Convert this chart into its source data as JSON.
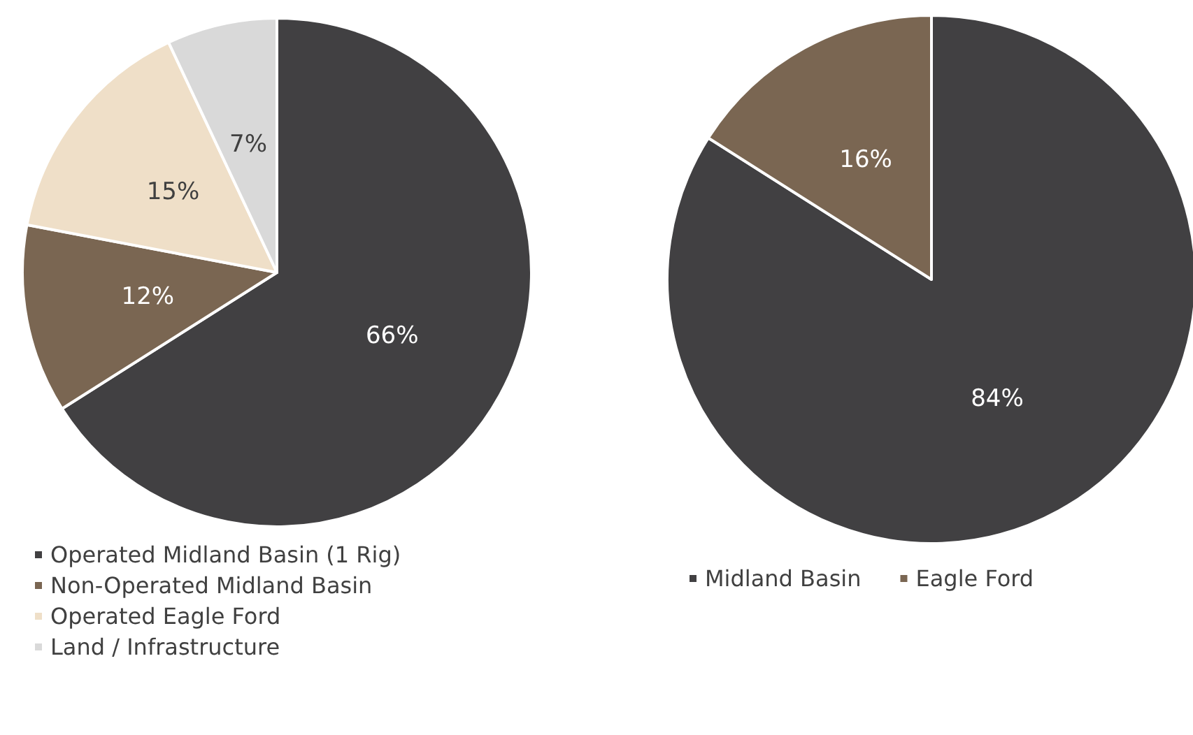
{
  "chart_data": [
    {
      "type": "pie",
      "categories": [
        "Operated Midland Basin (1 Rig)",
        "Non-Operated Midland Basin",
        "Operated Eagle Ford",
        "Land / Infrastructure"
      ],
      "values": [
        66,
        12,
        15,
        7
      ],
      "value_labels": [
        "66%",
        "12%",
        "15%",
        "7%"
      ],
      "colors": [
        "#414042",
        "#7a6652",
        "#efdfc8",
        "#d9d9d9"
      ],
      "legend": "bottom"
    },
    {
      "type": "pie",
      "categories": [
        "Midland Basin",
        "Eagle Ford"
      ],
      "values": [
        84,
        16
      ],
      "value_labels": [
        "84%",
        "16%"
      ],
      "colors": [
        "#414042",
        "#7a6652"
      ],
      "legend": "bottom"
    }
  ]
}
